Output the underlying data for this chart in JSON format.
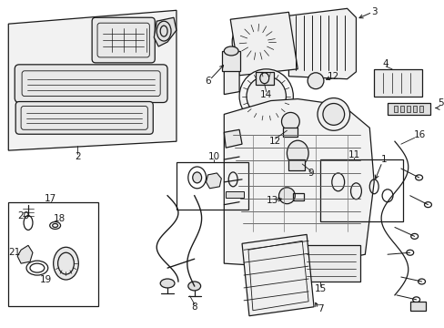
{
  "bg_color": "#ffffff",
  "line_color": "#1a1a1a",
  "lw": 0.9,
  "fig_w": 4.89,
  "fig_h": 3.6,
  "dpi": 100,
  "font_size": 7.0,
  "label_font_size": 7.5
}
